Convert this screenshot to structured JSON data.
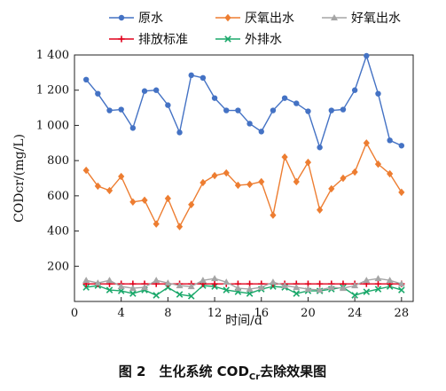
{
  "chart_data": {
    "type": "line",
    "xlabel": "时间/d",
    "ylabel": "CODcr/(mg/L)",
    "xlim": [
      0,
      29
    ],
    "ylim": [
      0,
      1400
    ],
    "xticks": [
      0,
      4,
      8,
      12,
      16,
      20,
      24,
      28
    ],
    "xtick_labels": [
      "0",
      "4",
      "8",
      "12",
      "16",
      "20",
      "24",
      "28"
    ],
    "yticks": [
      200,
      400,
      600,
      800,
      1000,
      1200,
      1400
    ],
    "ytick_labels": [
      "200",
      "400",
      "600",
      "800",
      "1 000",
      "1 200",
      "1 400"
    ],
    "grid": false,
    "legend_position": "top",
    "x": [
      1,
      2,
      3,
      4,
      5,
      6,
      7,
      8,
      9,
      10,
      11,
      12,
      13,
      14,
      15,
      16,
      17,
      18,
      19,
      20,
      21,
      22,
      23,
      24,
      25,
      26,
      27,
      28
    ],
    "series": [
      {
        "name": "原水",
        "color": "#4472c4",
        "marker": "circle",
        "values": [
          1260,
          1180,
          1085,
          1090,
          985,
          1195,
          1200,
          1115,
          960,
          1285,
          1270,
          1155,
          1085,
          1085,
          1010,
          965,
          1085,
          1155,
          1125,
          1080,
          875,
          1085,
          1090,
          1200,
          1395,
          1180,
          915,
          885
        ]
      },
      {
        "name": "厌氧出水",
        "color": "#ed7d31",
        "marker": "diamond",
        "values": [
          745,
          655,
          630,
          710,
          565,
          575,
          440,
          585,
          425,
          550,
          675,
          715,
          730,
          660,
          665,
          680,
          490,
          820,
          680,
          790,
          520,
          640,
          700,
          735,
          900,
          780,
          725,
          620
        ]
      },
      {
        "name": "好氧出水",
        "color": "#a5a5a5",
        "marker": "triangle",
        "values": [
          120,
          105,
          120,
          85,
          75,
          80,
          120,
          105,
          90,
          85,
          120,
          130,
          110,
          75,
          70,
          80,
          110,
          90,
          80,
          70,
          65,
          80,
          75,
          90,
          120,
          130,
          120,
          100
        ]
      },
      {
        "name": "排放标准",
        "color": "#e0001b",
        "marker": "plus",
        "values": [
          100,
          100,
          100,
          100,
          100,
          100,
          100,
          100,
          100,
          100,
          100,
          100,
          100,
          100,
          100,
          100,
          100,
          100,
          100,
          100,
          100,
          100,
          100,
          100,
          100,
          100,
          100,
          100
        ]
      },
      {
        "name": "外排水",
        "color": "#1aa86a",
        "marker": "x",
        "values": [
          80,
          90,
          65,
          60,
          45,
          65,
          35,
          80,
          40,
          30,
          90,
          85,
          65,
          55,
          45,
          70,
          85,
          80,
          45,
          60,
          60,
          70,
          80,
          35,
          55,
          70,
          85,
          65
        ]
      }
    ]
  },
  "caption": {
    "prefix": "图 2　生化系统 COD",
    "subscript": "Cr",
    "suffix": "去除效果图"
  }
}
